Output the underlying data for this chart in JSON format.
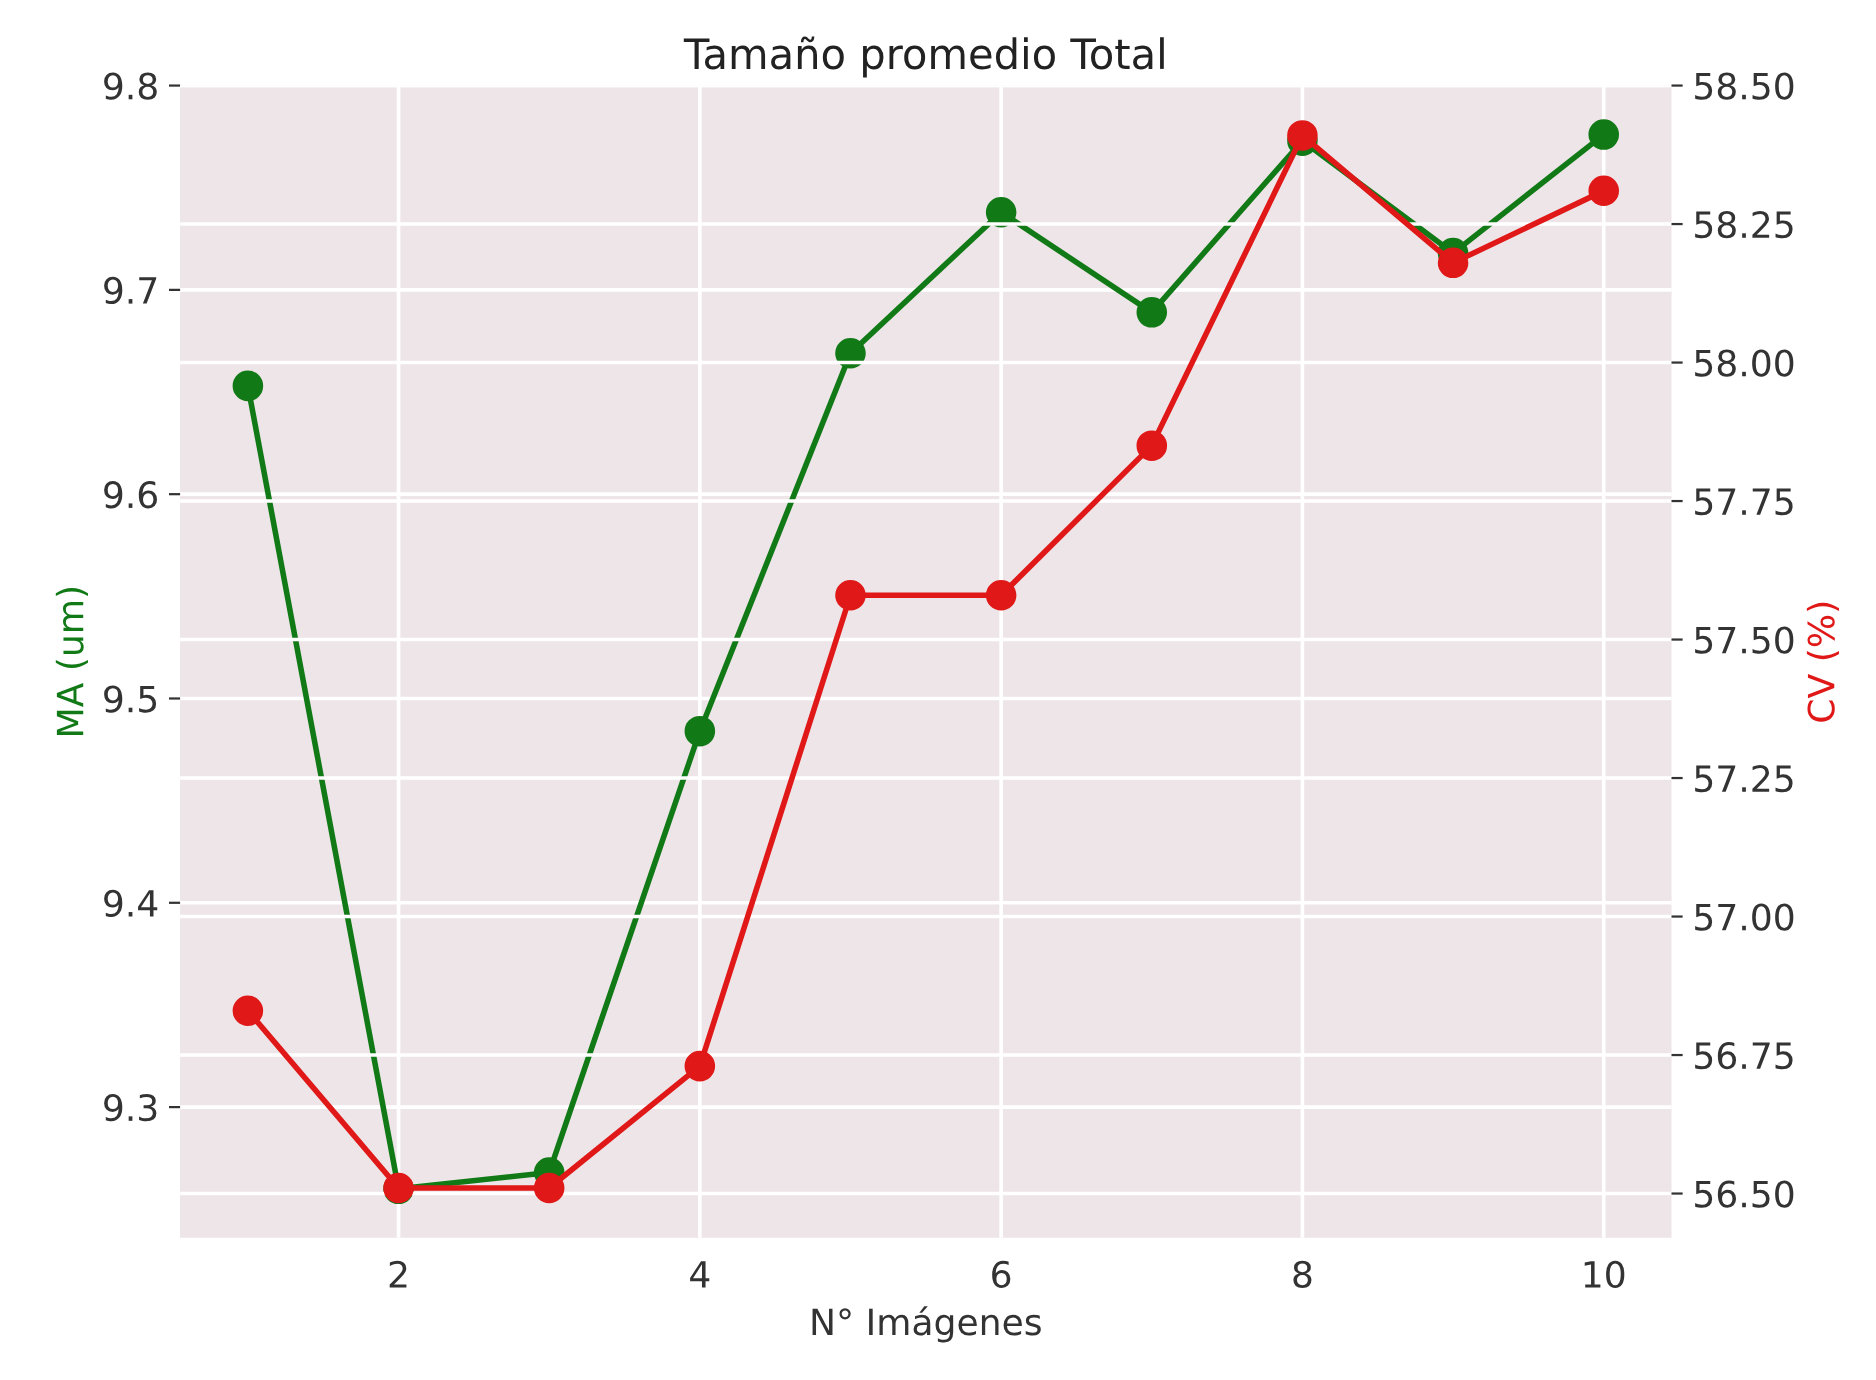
{
  "chart_data": {
    "type": "line",
    "title": "Tamaño promedio Total",
    "xlabel": "N° Imágenes",
    "ylabel": "MA (um)",
    "y2label": "CV (%)",
    "x": [
      1,
      2,
      3,
      4,
      5,
      6,
      7,
      8,
      9,
      10
    ],
    "series": [
      {
        "color": "#117a17",
        "values": [
          9.653,
          9.26,
          9.268,
          9.484,
          9.669,
          9.738,
          9.689,
          9.773,
          9.718,
          9.776
        ]
      },
      {
        "color": "#e01818",
        "axis": "y2",
        "values": [
          56.83,
          56.51,
          56.51,
          56.73,
          57.58,
          57.58,
          57.85,
          58.41,
          58.18,
          58.31
        ]
      }
    ],
    "xlim": [
      0.55,
      10.45
    ],
    "xticks": [
      2,
      4,
      6,
      8,
      10
    ],
    "ylim": [
      9.236,
      9.8
    ],
    "yticks": [
      9.3,
      9.4,
      9.5,
      9.6,
      9.7,
      9.8
    ],
    "y2lim": [
      56.42,
      58.5
    ],
    "y2ticks": [
      {
        "value": 56.5,
        "label": "56.50"
      },
      56.75,
      {
        "value": 57,
        "label": "57.00"
      },
      57.25,
      {
        "value": 57.5,
        "label": "57.50"
      },
      57.75,
      {
        "value": 58,
        "label": "58.00"
      },
      58.25,
      {
        "value": 58.5,
        "label": "58.50"
      }
    ],
    "grid": true,
    "marker": "circle",
    "line_style": "solid"
  }
}
